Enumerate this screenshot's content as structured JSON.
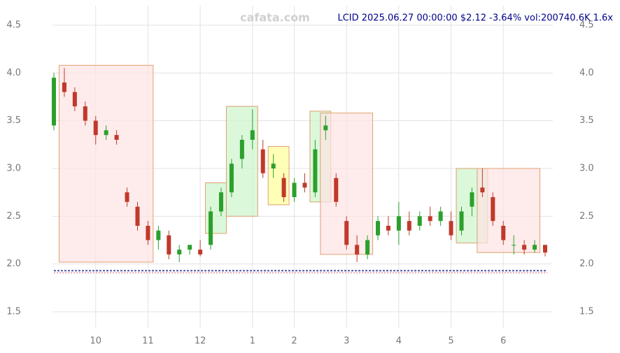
{
  "chart_data": {
    "type": "candlestick",
    "title": "LCID 2025.06.27 00:00:00 $2.12 -3.64% vol:200740.6K 1.6x",
    "watermark": "cafata.com",
    "categories": [
      null,
      null,
      null,
      null,
      "10",
      null,
      null,
      null,
      null,
      "11",
      null,
      null,
      null,
      null,
      "12",
      null,
      null,
      null,
      null,
      "1",
      null,
      null,
      null,
      "2",
      null,
      null,
      null,
      null,
      "3",
      null,
      null,
      null,
      null,
      "4",
      null,
      null,
      null,
      null,
      "5",
      null,
      null,
      null,
      null,
      "6",
      null,
      null,
      null,
      null
    ],
    "open": [
      3.45,
      3.9,
      3.8,
      3.65,
      3.5,
      3.35,
      3.35,
      2.75,
      2.6,
      2.4,
      2.25,
      2.3,
      2.1,
      2.15,
      2.15,
      2.2,
      2.55,
      2.75,
      3.1,
      3.3,
      3.2,
      3.0,
      2.9,
      2.7,
      2.85,
      2.75,
      3.4,
      2.9,
      2.45,
      2.2,
      2.1,
      2.3,
      2.4,
      2.35,
      2.45,
      2.4,
      2.5,
      2.45,
      2.45,
      2.35,
      2.6,
      2.8,
      2.7,
      2.4,
      2.2,
      2.2,
      2.15,
      2.2
    ],
    "high": [
      4.0,
      4.05,
      3.85,
      3.7,
      3.55,
      3.45,
      3.4,
      2.8,
      2.65,
      2.45,
      2.4,
      2.35,
      2.2,
      2.2,
      2.25,
      2.6,
      2.8,
      3.1,
      3.35,
      3.62,
      3.3,
      3.15,
      2.95,
      2.9,
      2.95,
      3.3,
      3.55,
      2.95,
      2.5,
      2.3,
      2.3,
      2.5,
      2.5,
      2.65,
      2.55,
      2.55,
      2.6,
      2.6,
      2.55,
      2.6,
      2.8,
      3.0,
      2.75,
      2.45,
      2.3,
      2.25,
      2.25,
      2.2
    ],
    "low": [
      3.4,
      3.75,
      3.6,
      3.45,
      3.25,
      3.3,
      3.25,
      2.6,
      2.35,
      2.2,
      2.15,
      2.05,
      2.02,
      2.1,
      2.08,
      2.15,
      2.5,
      2.7,
      3.0,
      3.2,
      2.9,
      2.9,
      2.65,
      2.65,
      2.75,
      2.7,
      3.3,
      2.6,
      2.15,
      2.02,
      2.05,
      2.25,
      2.3,
      2.2,
      2.3,
      2.35,
      2.4,
      2.4,
      2.25,
      2.3,
      2.5,
      2.7,
      2.4,
      2.2,
      2.1,
      2.1,
      2.12,
      2.08
    ],
    "close": [
      3.95,
      3.8,
      3.65,
      3.5,
      3.35,
      3.4,
      3.3,
      2.65,
      2.4,
      2.25,
      2.35,
      2.1,
      2.15,
      2.2,
      2.1,
      2.55,
      2.75,
      3.05,
      3.3,
      3.4,
      2.95,
      3.05,
      2.7,
      2.85,
      2.8,
      3.2,
      3.45,
      2.65,
      2.2,
      2.1,
      2.25,
      2.45,
      2.35,
      2.5,
      2.35,
      2.5,
      2.45,
      2.55,
      2.3,
      2.55,
      2.75,
      2.75,
      2.45,
      2.25,
      2.2,
      2.15,
      2.2,
      2.12
    ],
    "up_color": "#2ca02c",
    "down_color": "#c0392b",
    "boxes": [
      {
        "from": 1,
        "to": 9,
        "low": 2.02,
        "high": 4.08,
        "color": "#fde2e2"
      },
      {
        "from": 15,
        "to": 16,
        "low": 2.32,
        "high": 2.85,
        "color": "#ccf5cc"
      },
      {
        "from": 17,
        "to": 19,
        "low": 2.5,
        "high": 3.65,
        "color": "#ccf5cc"
      },
      {
        "from": 21,
        "to": 22,
        "low": 2.62,
        "high": 3.23,
        "color": "#ffff99"
      },
      {
        "from": 25,
        "to": 26,
        "low": 2.65,
        "high": 3.6,
        "color": "#ccf5cc"
      },
      {
        "from": 26,
        "to": 30,
        "low": 2.1,
        "high": 3.58,
        "color": "#fde2e2"
      },
      {
        "from": 39,
        "to": 41,
        "low": 2.22,
        "high": 3.0,
        "color": "#ccf5cc"
      },
      {
        "from": 41,
        "to": 46,
        "low": 2.12,
        "high": 3.0,
        "color": "#fde2e2"
      }
    ],
    "baseline": 1.93,
    "ylim": [
      1.5,
      4.5
    ],
    "yticks": [
      {
        "value": 1.5,
        "label": "1.5"
      },
      {
        "value": 2,
        "label": "2.0"
      },
      {
        "value": 2.5,
        "label": "2.5"
      },
      {
        "value": 3,
        "label": "3.0"
      },
      {
        "value": 3.5,
        "label": "3.5"
      },
      {
        "value": 4,
        "label": "4.0"
      },
      {
        "value": 4.5,
        "label": "4.5"
      }
    ],
    "grid": true
  }
}
